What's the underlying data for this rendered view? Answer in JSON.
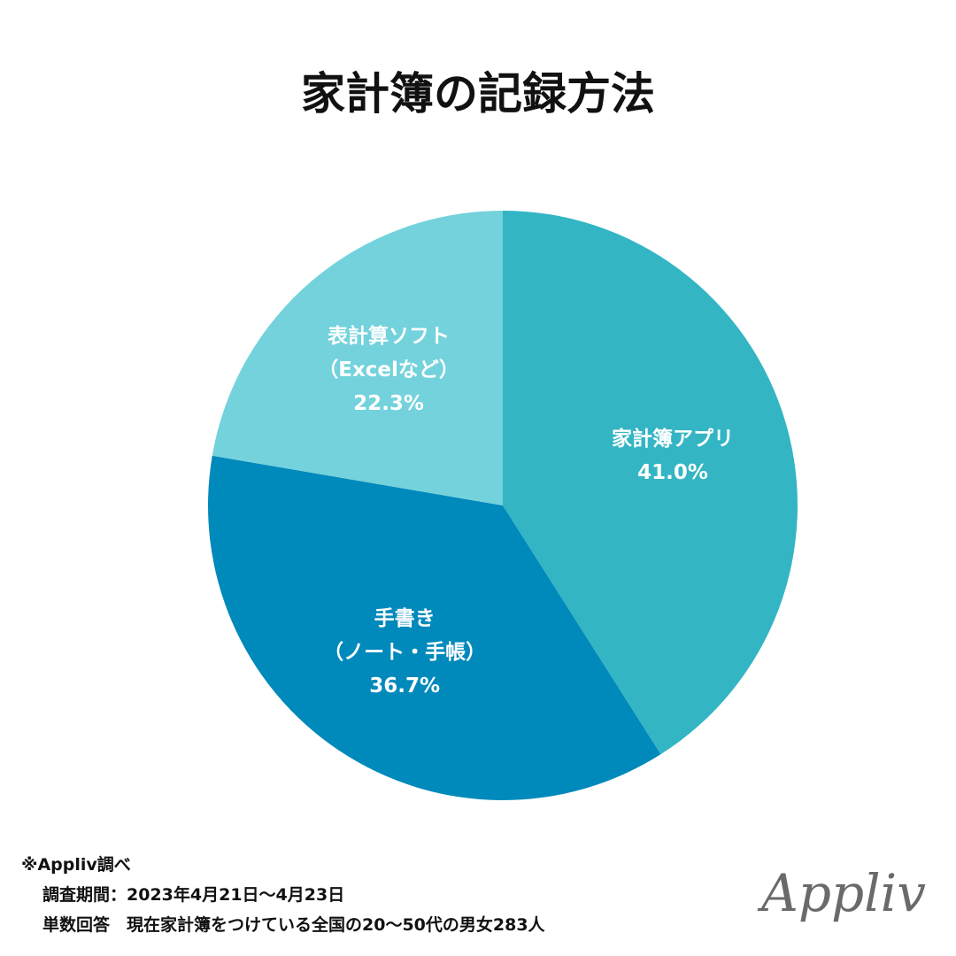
{
  "chart_data": {
    "type": "pie",
    "title": "家計簿の記録方法",
    "categories": [
      "家計簿アプリ",
      "手書き\n（ノート・手帳）",
      "表計算ソフト\n（Excelなど）"
    ],
    "values": [
      41.0,
      36.7,
      22.3
    ],
    "value_labels": [
      "41.0%",
      "36.7%",
      "22.3%"
    ],
    "colors": [
      "#33b5c4",
      "#0089bb",
      "#73d2dc"
    ]
  },
  "footer": {
    "source": "※Appliv調べ",
    "period": "調査期間：2023年4月21日～4月23日",
    "sample": "単数回答　現在家計簿をつけている全国の20～50代の男女283人",
    "logo": "Appliv"
  }
}
